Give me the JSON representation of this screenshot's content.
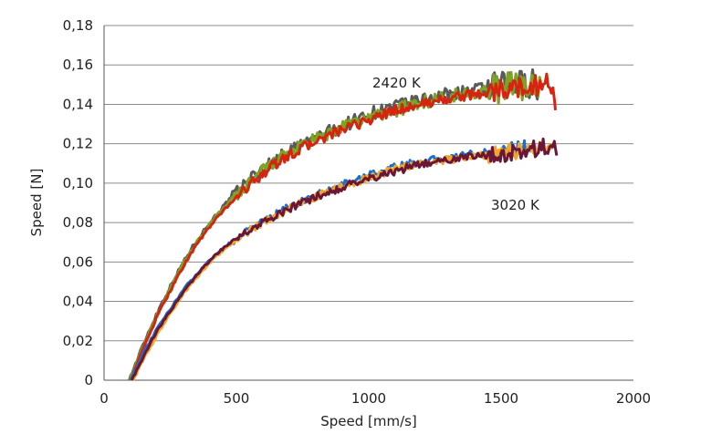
{
  "chart_data": {
    "type": "line",
    "xlabel": "Speed [mm/s]",
    "ylabel": "Speed [N]",
    "xlim": [
      0,
      2000
    ],
    "ylim": [
      0,
      0.18
    ],
    "x_ticks": [
      "0",
      "500",
      "1000",
      "1500",
      "2000"
    ],
    "y_ticks": [
      "0",
      "0,02",
      "0,04",
      "0,06",
      "0,08",
      "0,10",
      "0,12",
      "0,14",
      "0,16",
      "0,18"
    ],
    "grid": "horizontal",
    "legend": "none",
    "annotations": [
      {
        "text": "2420 K",
        "x": 1050,
        "y": 0.152
      },
      {
        "text": "3020 K",
        "x": 1470,
        "y": 0.088
      }
    ],
    "series": [
      {
        "group": "2420 K",
        "color": "#5a5a5a",
        "noise": 0.0035,
        "x": [
          95,
          130,
          170,
          210,
          260,
          300,
          350,
          400,
          450,
          500,
          550,
          600,
          650,
          700,
          750,
          800,
          900,
          1000,
          1100,
          1200,
          1300,
          1400,
          1500,
          1550,
          1600,
          1640
        ],
        "y": [
          0.0,
          0.012,
          0.025,
          0.037,
          0.05,
          0.06,
          0.071,
          0.08,
          0.088,
          0.095,
          0.102,
          0.107,
          0.112,
          0.116,
          0.12,
          0.123,
          0.129,
          0.135,
          0.139,
          0.142,
          0.145,
          0.147,
          0.149,
          0.15,
          0.151,
          0.15
        ]
      },
      {
        "group": "2420 K",
        "color": "#7ea321",
        "noise": 0.0035,
        "x": [
          98,
          130,
          170,
          210,
          260,
          300,
          350,
          400,
          450,
          500,
          550,
          600,
          650,
          700,
          750,
          800,
          900,
          1000,
          1100,
          1200,
          1300,
          1400,
          1500,
          1550,
          1600,
          1650
        ],
        "y": [
          0.0,
          0.011,
          0.024,
          0.036,
          0.049,
          0.059,
          0.07,
          0.079,
          0.087,
          0.094,
          0.1,
          0.106,
          0.111,
          0.115,
          0.119,
          0.122,
          0.128,
          0.133,
          0.137,
          0.141,
          0.144,
          0.146,
          0.148,
          0.149,
          0.15,
          0.149
        ]
      },
      {
        "group": "2420 K",
        "color": "#d62410",
        "noise": 0.0025,
        "x": [
          100,
          130,
          170,
          210,
          260,
          300,
          350,
          400,
          450,
          500,
          550,
          600,
          650,
          700,
          750,
          800,
          900,
          1000,
          1100,
          1200,
          1300,
          1400,
          1500,
          1550,
          1600,
          1650,
          1690,
          1705
        ],
        "y": [
          0.0,
          0.01,
          0.023,
          0.035,
          0.048,
          0.058,
          0.069,
          0.078,
          0.086,
          0.093,
          0.099,
          0.105,
          0.11,
          0.114,
          0.118,
          0.121,
          0.127,
          0.132,
          0.137,
          0.14,
          0.143,
          0.145,
          0.147,
          0.148,
          0.149,
          0.15,
          0.151,
          0.137
        ]
      },
      {
        "group": "3020 K",
        "color": "#1a6fc9",
        "noise": 0.002,
        "x": [
          100,
          150,
          200,
          250,
          300,
          350,
          400,
          450,
          500,
          550,
          600,
          650,
          700,
          750,
          800,
          900,
          1000,
          1100,
          1200,
          1300,
          1400,
          1500,
          1550,
          1600
        ],
        "y": [
          0.0,
          0.014,
          0.026,
          0.036,
          0.046,
          0.054,
          0.061,
          0.067,
          0.072,
          0.077,
          0.081,
          0.084,
          0.088,
          0.091,
          0.094,
          0.099,
          0.104,
          0.108,
          0.111,
          0.113,
          0.115,
          0.116,
          0.117,
          0.118
        ]
      },
      {
        "group": "3020 K",
        "color": "#f5a623",
        "noise": 0.002,
        "x": [
          110,
          150,
          200,
          250,
          300,
          350,
          400,
          450,
          500,
          550,
          600,
          650,
          700,
          750,
          800,
          900,
          1000,
          1100,
          1200,
          1300,
          1400,
          1500,
          1550,
          1600,
          1650,
          1690
        ],
        "y": [
          0.0,
          0.011,
          0.023,
          0.034,
          0.044,
          0.052,
          0.06,
          0.066,
          0.071,
          0.076,
          0.08,
          0.083,
          0.087,
          0.09,
          0.093,
          0.098,
          0.103,
          0.107,
          0.11,
          0.112,
          0.114,
          0.115,
          0.116,
          0.117,
          0.118,
          0.117
        ]
      },
      {
        "group": "3020 K",
        "color": "#6b1638",
        "noise": 0.002,
        "x": [
          105,
          150,
          200,
          250,
          300,
          350,
          400,
          450,
          500,
          550,
          600,
          650,
          700,
          750,
          800,
          900,
          1000,
          1100,
          1200,
          1300,
          1400,
          1500,
          1550,
          1600,
          1650,
          1700,
          1710
        ],
        "y": [
          0.0,
          0.012,
          0.025,
          0.035,
          0.045,
          0.053,
          0.061,
          0.067,
          0.072,
          0.076,
          0.08,
          0.083,
          0.087,
          0.09,
          0.093,
          0.098,
          0.102,
          0.106,
          0.11,
          0.112,
          0.114,
          0.115,
          0.116,
          0.117,
          0.118,
          0.119,
          0.114
        ]
      }
    ]
  }
}
